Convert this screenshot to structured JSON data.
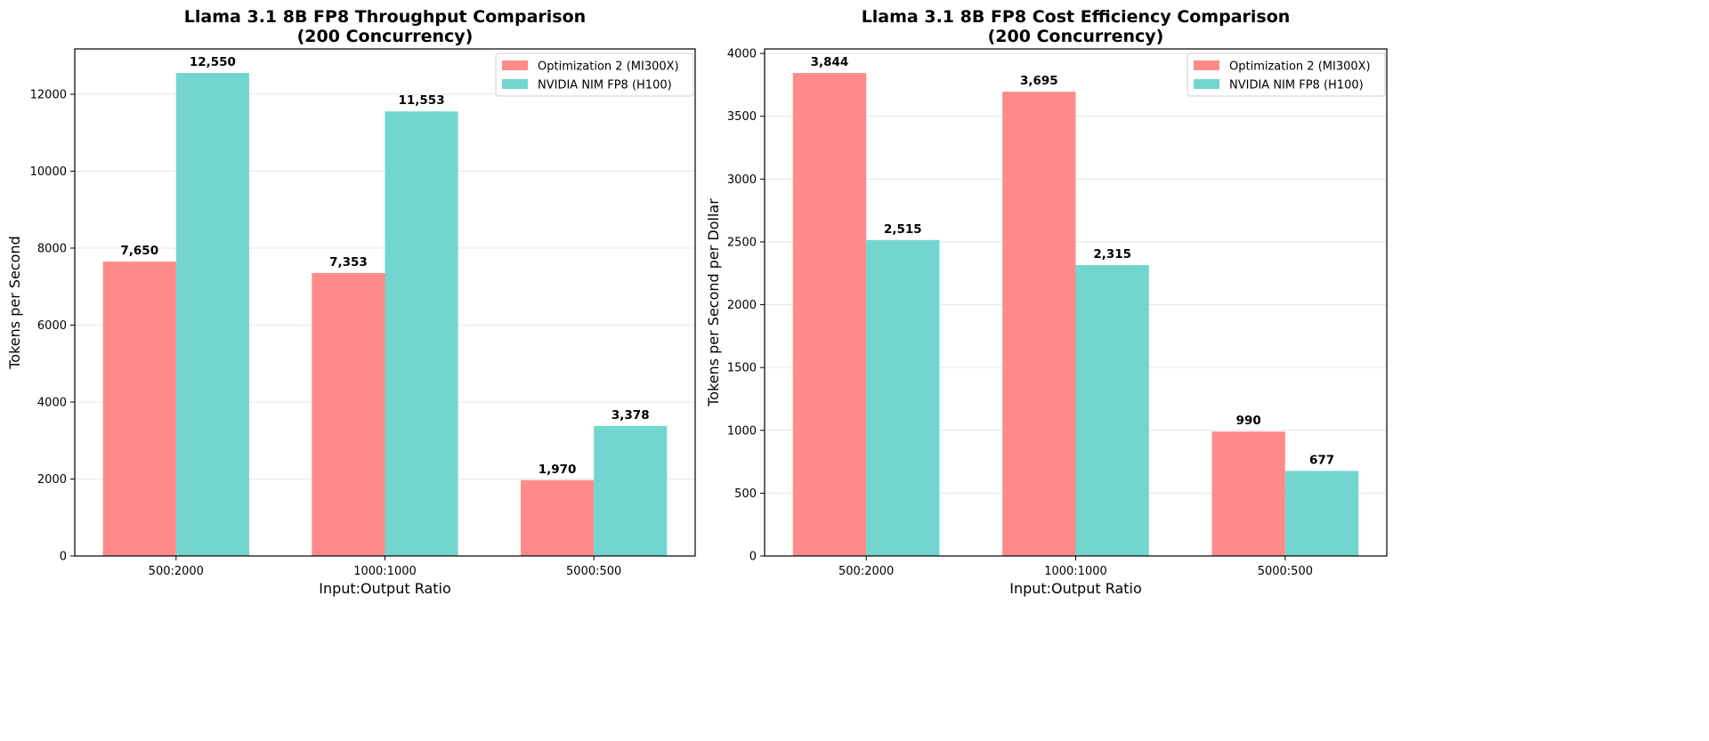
{
  "colors": {
    "series1": "#ff8a8a",
    "series2": "#72d6ce"
  },
  "chart_data": [
    {
      "type": "bar",
      "title": "Llama 3.1 8B FP8 Throughput Comparison\n(200 Concurrency)",
      "xlabel": "Input:Output Ratio",
      "ylabel": "Tokens per Second",
      "categories": [
        "500:2000",
        "1000:1000",
        "5000:500"
      ],
      "series": [
        {
          "name": "Optimization 2 (MI300X)",
          "values": [
            7650,
            7353,
            1970
          ],
          "labels": [
            "7,650",
            "7,353",
            "1,970"
          ]
        },
        {
          "name": "NVIDIA NIM FP8 (H100)",
          "values": [
            12550,
            11553,
            3378
          ],
          "labels": [
            "12,550",
            "11,553",
            "3,378"
          ]
        }
      ],
      "ylim": [
        0,
        13177
      ],
      "yticks": [
        0,
        2000,
        4000,
        6000,
        8000,
        10000,
        12000
      ],
      "grid": "y",
      "legend": "top-right"
    },
    {
      "type": "bar",
      "title": "Llama 3.1 8B FP8 Cost Efficiency Comparison\n(200 Concurrency)",
      "xlabel": "Input:Output Ratio",
      "ylabel": "Tokens per Second per Dollar",
      "categories": [
        "500:2000",
        "1000:1000",
        "5000:500"
      ],
      "series": [
        {
          "name": "Optimization 2 (MI300X)",
          "values": [
            3844,
            3695,
            990
          ],
          "labels": [
            "3,844",
            "3,695",
            "990"
          ]
        },
        {
          "name": "NVIDIA NIM FP8 (H100)",
          "values": [
            2515,
            2315,
            677
          ],
          "labels": [
            "2,515",
            "2,315",
            "677"
          ]
        }
      ],
      "ylim": [
        0,
        4036
      ],
      "yticks": [
        0,
        500,
        1000,
        1500,
        2000,
        2500,
        3000,
        3500,
        4000
      ],
      "grid": "y",
      "legend": "top-right"
    }
  ]
}
